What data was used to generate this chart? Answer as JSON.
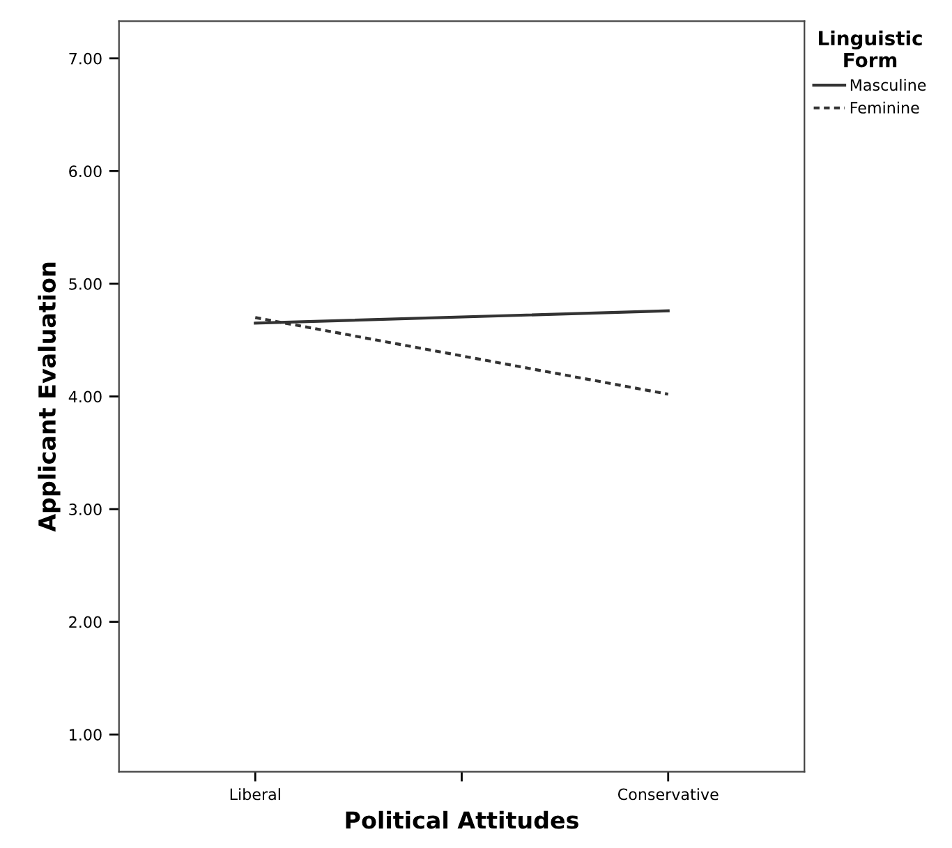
{
  "chart_data": {
    "type": "line",
    "xlabel": "Political Attitudes",
    "ylabel": "Applicant Evaluation",
    "legend_title": "Linguistic\nForm",
    "legend": "top right",
    "categories": [
      "Liberal",
      "Conservative"
    ],
    "ylim": [
      0.67,
      7.33
    ],
    "yticks": [
      {
        "value": 1,
        "label": "1.00"
      },
      {
        "value": 2,
        "label": "2.00"
      },
      {
        "value": 3,
        "label": "3.00"
      },
      {
        "value": 4,
        "label": "4.00"
      },
      {
        "value": 5,
        "label": "5.00"
      },
      {
        "value": 6,
        "label": "6.00"
      },
      {
        "value": 7,
        "label": "7.00"
      }
    ],
    "grid": false,
    "series": [
      {
        "name": "Masculine",
        "color": "#333333",
        "values": [
          4.65,
          4.76
        ],
        "line_style": "solid"
      },
      {
        "name": "Feminine",
        "color": "#333333",
        "values": [
          4.7,
          4.02
        ],
        "line_style": "dotted"
      }
    ]
  }
}
